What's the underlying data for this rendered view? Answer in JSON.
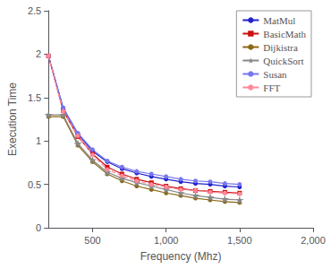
{
  "chart_data": {
    "type": "line",
    "xlabel": "Frequency (Mhz)",
    "ylabel": "Execution Time",
    "xlim": [
      200,
      2000
    ],
    "ylim": [
      0,
      2.5
    ],
    "xticks": [
      500,
      {
        "value": 1000,
        "label": "1,000"
      },
      {
        "value": 1500,
        "label": "1,500"
      },
      {
        "value": 2000,
        "label": "2,000"
      }
    ],
    "yticks": [
      0,
      0.5,
      1,
      1.5,
      2,
      2.5
    ],
    "grid": false,
    "legend": "upper right",
    "x": [
      200,
      300,
      400,
      500,
      600,
      700,
      800,
      900,
      1000,
      1100,
      1200,
      1300,
      1400,
      1500
    ],
    "series": [
      {
        "name": "MatMul",
        "color": "#2222cc",
        "marker": "circle",
        "line_style": "solid",
        "values": [
          1.98,
          1.38,
          1.08,
          0.88,
          0.76,
          0.68,
          0.63,
          0.59,
          0.56,
          0.53,
          0.51,
          0.5,
          0.48,
          0.47
        ]
      },
      {
        "name": "BasicMath",
        "color": "#cc1111",
        "marker": "square",
        "line_style": "solid",
        "values": [
          1.98,
          1.35,
          1.05,
          0.85,
          0.7,
          0.62,
          0.56,
          0.52,
          0.48,
          0.45,
          0.43,
          0.42,
          0.41,
          0.4
        ]
      },
      {
        "name": "Dijkistra",
        "color": "#8B6914",
        "marker": "circle",
        "line_style": "solid",
        "values": [
          1.28,
          1.28,
          0.95,
          0.76,
          0.62,
          0.54,
          0.48,
          0.44,
          0.4,
          0.37,
          0.34,
          0.32,
          0.3,
          0.29
        ]
      },
      {
        "name": "QuickSort",
        "color": "#888888",
        "marker": "star",
        "line_style": "solid",
        "values": [
          1.3,
          1.3,
          0.97,
          0.78,
          0.64,
          0.57,
          0.52,
          0.48,
          0.44,
          0.4,
          0.37,
          0.35,
          0.33,
          0.32
        ]
      },
      {
        "name": "Susan",
        "color": "#7777ee",
        "marker": "circle",
        "line_style": "solid",
        "values": [
          1.98,
          1.38,
          1.09,
          0.9,
          0.77,
          0.7,
          0.65,
          0.62,
          0.59,
          0.56,
          0.54,
          0.53,
          0.51,
          0.5
        ]
      },
      {
        "name": "FFT",
        "color": "#ff8899",
        "marker": "circle",
        "line_style": "dashed",
        "values": [
          1.98,
          1.34,
          1.06,
          0.84,
          0.67,
          0.6,
          0.54,
          0.5,
          0.47,
          0.44,
          0.43,
          0.41,
          0.4,
          0.39
        ]
      }
    ]
  }
}
